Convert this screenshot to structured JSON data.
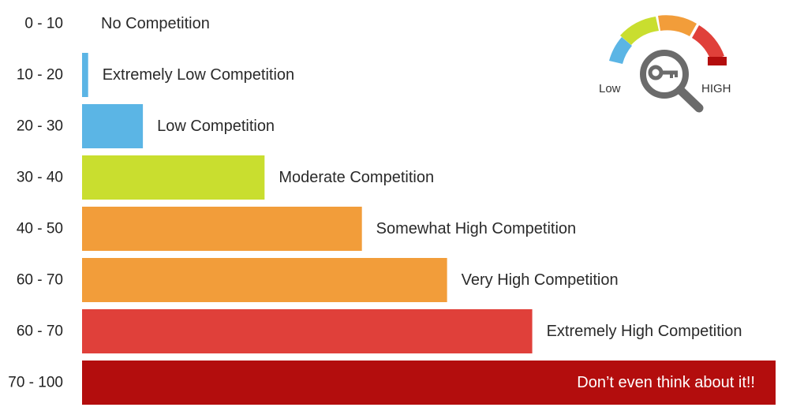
{
  "chart_data": {
    "type": "bar",
    "orientation": "horizontal",
    "categories": [
      "0 - 10",
      "10 - 20",
      "20 - 30",
      "30 - 40",
      "40 - 50",
      "60 - 70",
      "60 - 70",
      "70 - 100"
    ],
    "values": [
      0,
      1,
      10,
      30,
      46,
      60,
      74,
      114
    ],
    "labels": [
      "No Competition",
      "Extremely Low Competition",
      "Low Competition",
      "Moderate Competition",
      "Somewhat High Competition",
      "Very High Competition",
      "Extremely High Competition",
      "Don’t even think about it!!"
    ],
    "colors": [
      "#5bb5e5",
      "#5bb5e5",
      "#5bb5e5",
      "#c9de2f",
      "#f29d3a",
      "#f29d3a",
      "#e0403a",
      "#b30d0d"
    ],
    "xlim": [
      0,
      114
    ],
    "grid": false,
    "legend": "none"
  },
  "gauge": {
    "low_label": "Low",
    "high_label": "HIGH",
    "segment_colors": [
      "#5bb5e5",
      "#c9de2f",
      "#f29d3a",
      "#e0403a",
      "#b30d0d"
    ],
    "icon": "magnifier-key-icon"
  }
}
